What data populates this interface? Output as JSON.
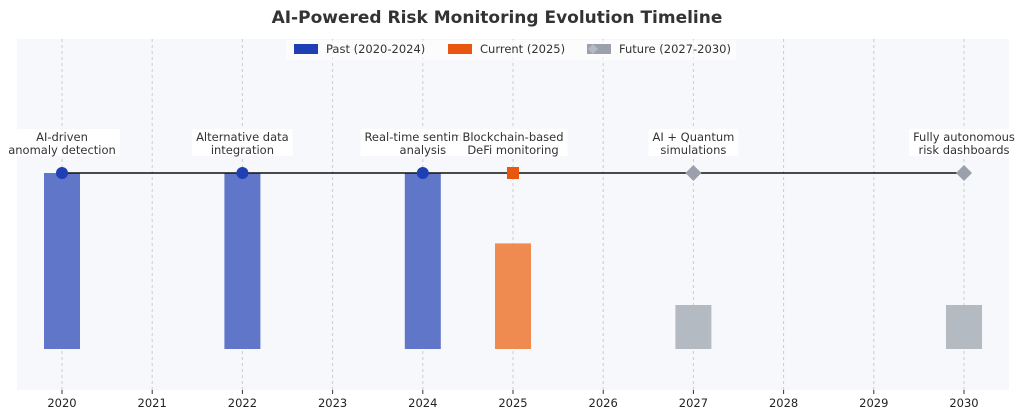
{
  "chart_data": {
    "type": "timeline",
    "title": "AI-Powered Risk Monitoring Evolution Timeline",
    "xlabel": "",
    "ylabel": "",
    "xlim": [
      2019.5,
      2030.5
    ],
    "x_ticks": [
      "2020",
      "2021",
      "2022",
      "2023",
      "2024",
      "2025",
      "2026",
      "2027",
      "2028",
      "2029",
      "2030"
    ],
    "grid": true,
    "legend_position": "top-center",
    "legend": [
      {
        "key": "past",
        "label": "Past (2020-2024)",
        "color": "#1f3fb5"
      },
      {
        "key": "current",
        "label": "Current (2025)",
        "color": "#e8560f"
      },
      {
        "key": "future",
        "label": "Future (2027-2030)",
        "color": "#9aa1ad"
      }
    ],
    "events": [
      {
        "year": 2020,
        "lines": [
          "AI-driven",
          "anomaly detection"
        ],
        "category": "past",
        "marker": "circle",
        "bar_level": 1.0
      },
      {
        "year": 2022,
        "lines": [
          "Alternative data",
          "integration"
        ],
        "category": "past",
        "marker": "circle",
        "bar_level": 1.0
      },
      {
        "year": 2024,
        "lines": [
          "Real-time sentiment",
          "analysis"
        ],
        "category": "past",
        "marker": "circle",
        "bar_level": 1.0
      },
      {
        "year": 2025,
        "lines": [
          "Blockchain-based",
          "DeFi monitoring"
        ],
        "category": "current",
        "marker": "square",
        "bar_level": 0.6
      },
      {
        "year": 2027,
        "lines": [
          "AI + Quantum",
          "simulations"
        ],
        "category": "future",
        "marker": "diamond",
        "bar_level": 0.25
      },
      {
        "year": 2030,
        "lines": [
          "Fully autonomous",
          "risk dashboards"
        ],
        "category": "future",
        "marker": "diamond",
        "bar_level": 0.25
      }
    ],
    "colors": {
      "past_bar": "#6076c8",
      "current_bar": "#ef8a50",
      "future_bar": "#b4bac2",
      "timeline": "#111111",
      "plot_bg": "#f7f8fb",
      "grid": "#c9ccd3"
    }
  }
}
